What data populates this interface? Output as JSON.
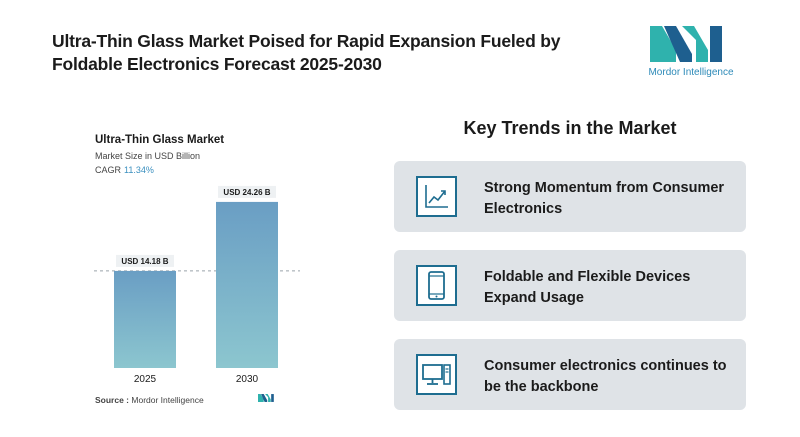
{
  "header": {
    "title": "Ultra-Thin Glass Market Poised for Rapid Expansion Fueled by Foldable Electronics Forecast 2025-2030"
  },
  "brand": {
    "name": "Mordor Intelligence",
    "colors": {
      "teal": "#2fb2ad",
      "blue": "#1e5f8f",
      "text": "#2d8ab8"
    }
  },
  "chart_data": {
    "type": "bar",
    "title": "Ultra-Thin Glass Market",
    "subtitle": "Market Size in USD Billion",
    "cagr_label": "CAGR",
    "cagr_value": "11.34%",
    "categories": [
      "2025",
      "2030"
    ],
    "values": [
      14.18,
      24.26
    ],
    "data_labels": [
      "USD 14.18 B",
      "USD 24.26 B"
    ],
    "ylim": [
      0,
      26
    ],
    "grid": false,
    "bar_color_top": "#6a9ec4",
    "bar_color_bottom": "#8cc6cf"
  },
  "source": {
    "label": "Source :",
    "value": "Mordor Intelligence"
  },
  "trends": {
    "title": "Key Trends in the Market",
    "items": [
      {
        "icon": "line-chart-icon",
        "text": "Strong Momentum from Consumer Electronics"
      },
      {
        "icon": "smartphone-icon",
        "text": "Foldable and Flexible Devices Expand Usage"
      },
      {
        "icon": "desktop-computer-icon",
        "text": "Consumer electronics continues to be the backbone"
      }
    ]
  }
}
